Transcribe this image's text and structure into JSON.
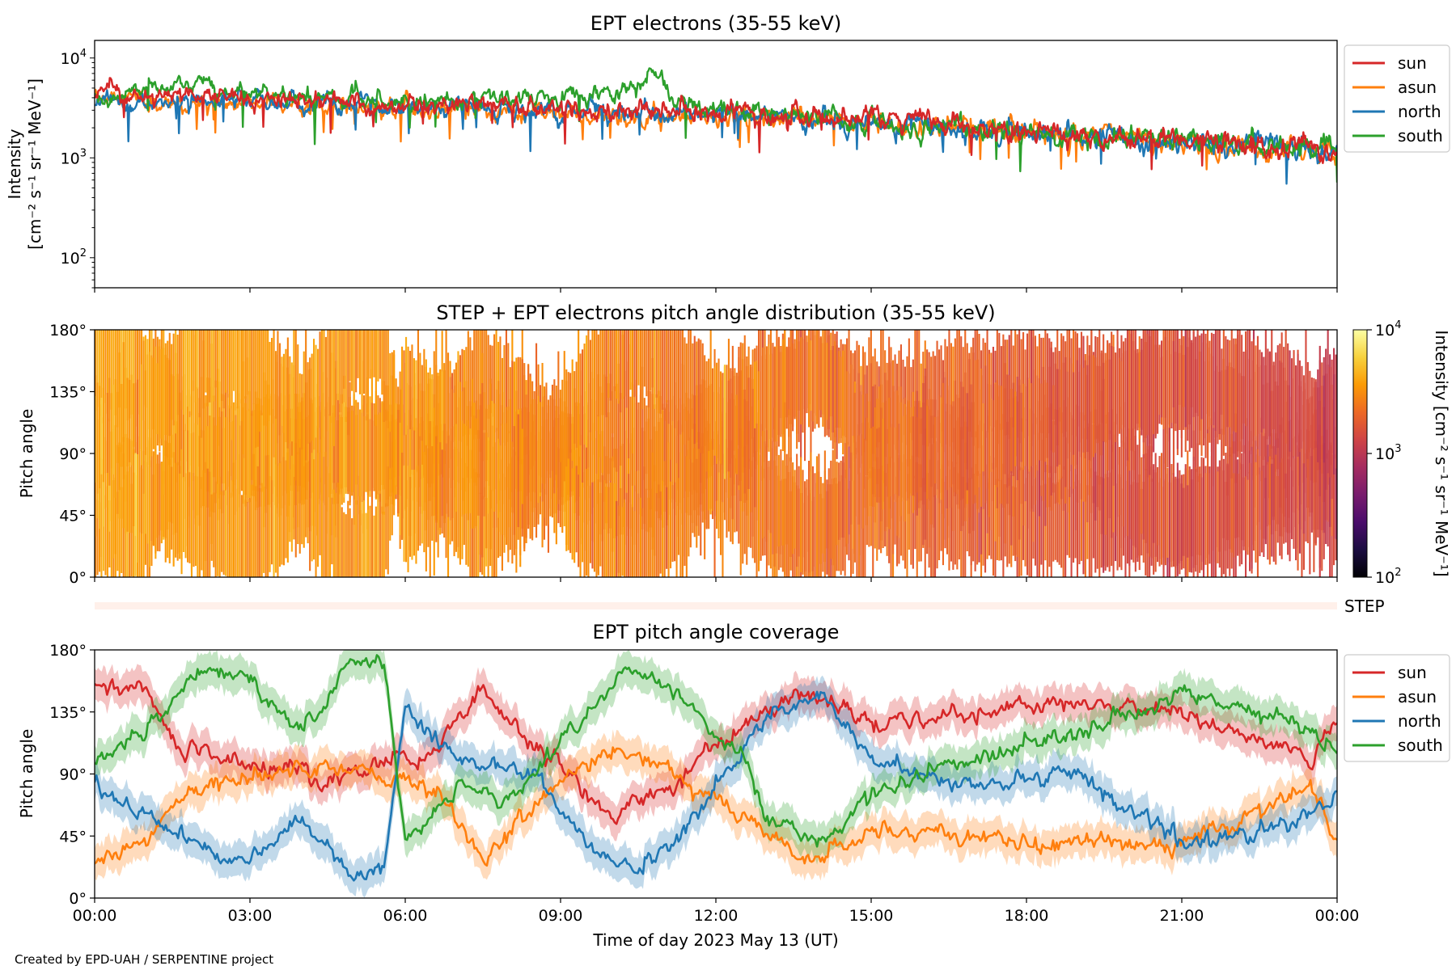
{
  "figure": {
    "credit": "Created by EPD-UAH / SERPENTINE project"
  },
  "colors": {
    "sun": "#d62728",
    "asun": "#ff7f0e",
    "north": "#1f77b4",
    "south": "#2ca02c",
    "step_bar": "#fff0ea"
  },
  "chart_data": [
    {
      "type": "line",
      "title": "EPT electrons (35-55 keV)",
      "ylabel_line1": "Intensity",
      "ylabel_line2": "[cm⁻² s⁻¹ sr⁻¹ MeV⁻¹]",
      "yscale": "log",
      "ylim": [
        50,
        15000
      ],
      "yticks": [
        {
          "value": 100,
          "base": "10",
          "exp": "2"
        },
        {
          "value": 1000,
          "base": "10",
          "exp": "3"
        },
        {
          "value": 10000,
          "base": "10",
          "exp": "4"
        }
      ],
      "xlim": [
        0,
        24
      ],
      "legend": "outside-right",
      "series": [
        {
          "name": "sun",
          "color": "#d62728",
          "anchors": [
            [
              0,
              4500
            ],
            [
              3,
              4000
            ],
            [
              6,
              3500
            ],
            [
              9,
              3100
            ],
            [
              12,
              2800
            ],
            [
              15,
              2400
            ],
            [
              18,
              1900
            ],
            [
              21,
              1500
            ],
            [
              24,
              1200
            ]
          ]
        },
        {
          "name": "asun",
          "color": "#ff7f0e",
          "anchors": [
            [
              0,
              3700
            ],
            [
              3,
              3500
            ],
            [
              6,
              3100
            ],
            [
              9,
              2800
            ],
            [
              12,
              2500
            ],
            [
              15,
              2200
            ],
            [
              18,
              1800
            ],
            [
              21,
              1400
            ],
            [
              24,
              1150
            ]
          ]
        },
        {
          "name": "north",
          "color": "#1f77b4",
          "anchors": [
            [
              0,
              3800
            ],
            [
              3,
              3700
            ],
            [
              6,
              3300
            ],
            [
              9,
              3000
            ],
            [
              12,
              2700
            ],
            [
              15,
              2300
            ],
            [
              18,
              1800
            ],
            [
              21,
              1450
            ],
            [
              24,
              1200
            ]
          ]
        },
        {
          "name": "south",
          "color": "#2ca02c",
          "anchors": [
            [
              0,
              4000
            ],
            [
              2,
              6000
            ],
            [
              3,
              4500
            ],
            [
              6,
              3600
            ],
            [
              9.6,
              4100
            ],
            [
              10.9,
              6200
            ],
            [
              11.2,
              3600
            ],
            [
              15,
              2300
            ],
            [
              18,
              1800
            ],
            [
              21,
              1500
            ],
            [
              24,
              1250
            ]
          ]
        }
      ]
    },
    {
      "type": "heatmap",
      "title": "STEP + EPT electrons pitch angle distribution (35-55 keV)",
      "ylabel": "Pitch angle",
      "ylim": [
        0,
        180
      ],
      "yticks": [
        "0°",
        "45°",
        "90°",
        "135°",
        "180°"
      ],
      "xlim": [
        0,
        24
      ],
      "colorbar": {
        "label": "Intensity [cm⁻² s⁻¹ sr⁻¹ MeV⁻¹]",
        "scale": "log",
        "range": [
          100,
          10000
        ],
        "ticks": [
          {
            "value": 100,
            "base": "10",
            "exp": "2"
          },
          {
            "value": 1000,
            "base": "10",
            "exp": "3"
          },
          {
            "value": 10000,
            "base": "10",
            "exp": "4"
          }
        ],
        "colormap": [
          "#000004",
          "#1b0c41",
          "#4a0c6b",
          "#781c6d",
          "#a52c60",
          "#cf4446",
          "#ed6925",
          "#fb9b06",
          "#f7d13d",
          "#fcffa4"
        ]
      },
      "intensity_trend": [
        [
          0,
          3800
        ],
        [
          6,
          3200
        ],
        [
          12,
          2600
        ],
        [
          18,
          1800
        ],
        [
          24,
          1300
        ]
      ]
    },
    {
      "type": "bar",
      "label": "STEP"
    },
    {
      "type": "line",
      "title": "EPT pitch angle coverage",
      "ylabel": "Pitch angle",
      "ylim": [
        0,
        180
      ],
      "yticks": [
        "0°",
        "45°",
        "90°",
        "135°",
        "180°"
      ],
      "xlim": [
        0,
        24
      ],
      "xlabel": "Time of day 2023 May 13 (UT)",
      "xticks": [
        "00:00",
        "03:00",
        "06:00",
        "09:00",
        "12:00",
        "15:00",
        "18:00",
        "21:00",
        "00:00"
      ],
      "legend": "outside-right",
      "series": [
        {
          "name": "sun",
          "color": "#d62728",
          "anchors": [
            [
              0,
              155
            ],
            [
              1,
              150
            ],
            [
              1.6,
              110
            ],
            [
              3,
              95
            ],
            [
              4.5,
              88
            ],
            [
              6.5,
              105
            ],
            [
              7.5,
              150
            ],
            [
              8.5,
              110
            ],
            [
              10,
              60
            ],
            [
              11,
              80
            ],
            [
              12,
              110
            ],
            [
              13,
              135
            ],
            [
              13.8,
              150
            ],
            [
              15,
              125
            ],
            [
              18,
              140
            ],
            [
              21,
              135
            ],
            [
              23.5,
              100
            ],
            [
              24,
              130
            ]
          ]
        },
        {
          "name": "asun",
          "color": "#ff7f0e",
          "anchors": [
            [
              0,
              28
            ],
            [
              1,
              40
            ],
            [
              1.5,
              72
            ],
            [
              3,
              90
            ],
            [
              4.5,
              95
            ],
            [
              6.5,
              80
            ],
            [
              7.5,
              30
            ],
            [
              8.5,
              70
            ],
            [
              10,
              110
            ],
            [
              11,
              95
            ],
            [
              12,
              70
            ],
            [
              13,
              45
            ],
            [
              13.8,
              25
            ],
            [
              15,
              50
            ],
            [
              18,
              40
            ],
            [
              21,
              40
            ],
            [
              23.5,
              80
            ],
            [
              24,
              45
            ]
          ]
        },
        {
          "name": "north",
          "color": "#1f77b4",
          "anchors": [
            [
              0,
              80
            ],
            [
              1,
              60
            ],
            [
              2,
              40
            ],
            [
              3,
              25
            ],
            [
              4,
              60
            ],
            [
              5,
              15
            ],
            [
              5.6,
              20
            ],
            [
              6,
              140
            ],
            [
              7,
              100
            ],
            [
              8.5,
              90
            ],
            [
              9.5,
              40
            ],
            [
              10.5,
              20
            ],
            [
              11.2,
              40
            ],
            [
              12,
              80
            ],
            [
              13,
              130
            ],
            [
              14,
              150
            ],
            [
              15,
              100
            ],
            [
              17,
              80
            ],
            [
              19,
              90
            ],
            [
              21,
              40
            ],
            [
              23,
              50
            ],
            [
              24,
              70
            ]
          ]
        },
        {
          "name": "south",
          "color": "#2ca02c",
          "anchors": [
            [
              0,
              100
            ],
            [
              1,
              120
            ],
            [
              2,
              165
            ],
            [
              3,
              160
            ],
            [
              4,
              120
            ],
            [
              5,
              175
            ],
            [
              5.6,
              170
            ],
            [
              6,
              40
            ],
            [
              7,
              80
            ],
            [
              8,
              70
            ],
            [
              9,
              110
            ],
            [
              10,
              160
            ],
            [
              10.7,
              165
            ],
            [
              11.5,
              140
            ],
            [
              12.5,
              100
            ],
            [
              13,
              60
            ],
            [
              14,
              40
            ],
            [
              15,
              80
            ],
            [
              17,
              100
            ],
            [
              19,
              120
            ],
            [
              21,
              150
            ],
            [
              23,
              130
            ],
            [
              24,
              110
            ]
          ]
        }
      ]
    }
  ]
}
